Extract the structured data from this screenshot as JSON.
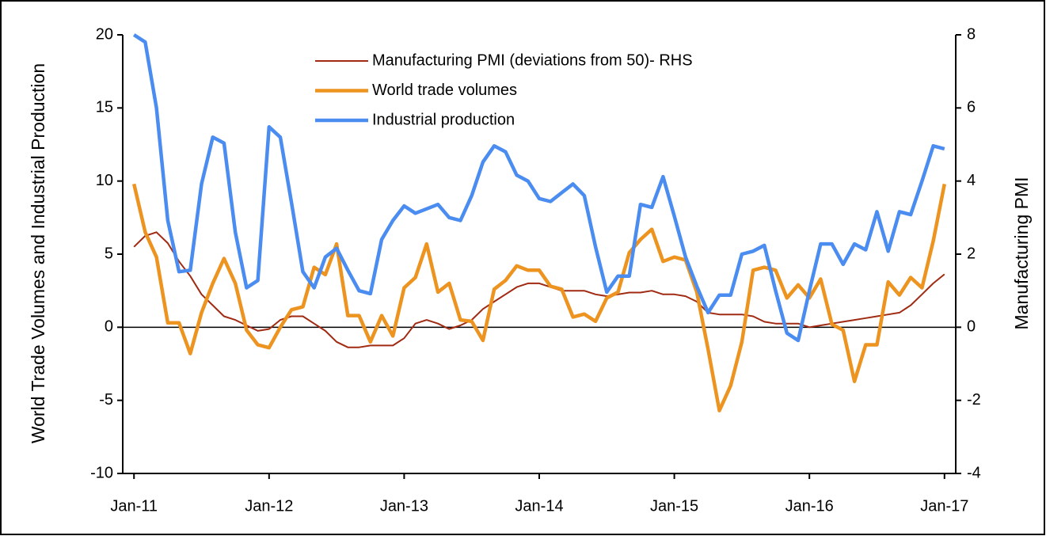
{
  "chart_data": {
    "type": "line",
    "y_label": "World Trade Volumes and Industrial Production",
    "y2_label": "Manufacturing PMI",
    "categories": [
      "Jan-11",
      null,
      null,
      null,
      null,
      null,
      null,
      null,
      null,
      null,
      null,
      null,
      "Jan-12",
      null,
      null,
      null,
      null,
      null,
      null,
      null,
      null,
      null,
      null,
      null,
      "Jan-13",
      null,
      null,
      null,
      null,
      null,
      null,
      null,
      null,
      null,
      null,
      null,
      "Jan-14",
      null,
      null,
      null,
      null,
      null,
      null,
      null,
      null,
      null,
      null,
      null,
      "Jan-15",
      null,
      null,
      null,
      null,
      null,
      null,
      null,
      null,
      null,
      null,
      null,
      "Jan-16",
      null,
      null,
      null,
      null,
      null,
      null,
      null,
      null,
      null,
      null,
      null,
      "Jan-17"
    ],
    "series": [
      {
        "name": "Manufacturing PMI (deviations from 50)- RHS",
        "color": "#a02a12",
        "axis": "y2",
        "values": [
          2.2,
          2.5,
          2.6,
          2.3,
          1.8,
          1.4,
          0.9,
          0.6,
          0.3,
          0.2,
          0.05,
          -0.1,
          -0.05,
          0.2,
          0.3,
          0.3,
          0.1,
          -0.1,
          -0.4,
          -0.55,
          -0.55,
          -0.5,
          -0.5,
          -0.5,
          -0.3,
          0.1,
          0.2,
          0.1,
          -0.05,
          0.05,
          0.2,
          0.5,
          0.7,
          0.9,
          1.1,
          1.2,
          1.2,
          1.1,
          1.0,
          1.0,
          1.0,
          0.9,
          0.85,
          0.9,
          0.95,
          0.95,
          1.0,
          0.9,
          0.9,
          0.85,
          0.7,
          0.4,
          0.35,
          0.35,
          0.35,
          0.3,
          0.15,
          0.1,
          0.1,
          0.1,
          0.0,
          0.05,
          0.1,
          0.15,
          0.2,
          0.25,
          0.3,
          0.35,
          0.4,
          0.6,
          0.9,
          1.2,
          1.45
        ]
      },
      {
        "name": "World trade volumes",
        "color": "#ec9320",
        "values": [
          9.8,
          6.5,
          4.8,
          0.3,
          0.3,
          -1.8,
          1.0,
          3.0,
          4.7,
          3.0,
          -0.2,
          -1.2,
          -1.4,
          0,
          1.2,
          1.4,
          4.1,
          3.6,
          5.7,
          0.8,
          0.8,
          -1.0,
          0.8,
          -0.6,
          2.7,
          3.4,
          5.7,
          2.4,
          3.0,
          0.5,
          0.4,
          -0.9,
          2.6,
          3.2,
          4.2,
          3.9,
          3.9,
          2.8,
          2.6,
          0.7,
          0.9,
          0.4,
          2.0,
          2.4,
          5.1,
          6.0,
          6.7,
          4.5,
          4.8,
          4.6,
          2.4,
          -1.5,
          -5.7,
          -4.0,
          -1.0,
          3.9,
          4.1,
          3.9,
          2.0,
          2.9,
          2.0,
          3.3,
          0.2,
          -0.2,
          -3.7,
          -1.2,
          -1.2,
          3.1,
          2.2,
          3.4,
          2.7,
          5.9,
          9.8
        ]
      },
      {
        "name": "Industrial production",
        "color": "#4a8cf0",
        "values": [
          20,
          19.5,
          15,
          7.3,
          3.8,
          3.9,
          9.8,
          13.0,
          12.6,
          6.5,
          2.7,
          3.2,
          13.7,
          13.0,
          8.5,
          3.8,
          2.7,
          4.8,
          5.4,
          3.9,
          2.5,
          2.3,
          6.0,
          7.3,
          8.3,
          7.8,
          8.1,
          8.4,
          7.5,
          7.3,
          9.0,
          11.3,
          12.4,
          12.0,
          10.4,
          10.0,
          8.8,
          8.6,
          9.2,
          9.8,
          9.0,
          5.5,
          2.4,
          3.5,
          3.5,
          8.4,
          8.2,
          10.3,
          7.6,
          4.8,
          2.8,
          1.0,
          2.2,
          2.2,
          5.0,
          5.2,
          5.6,
          2.5,
          -0.4,
          -0.9,
          2.5,
          5.7,
          5.7,
          4.3,
          5.7,
          5.3,
          7.9,
          5.2,
          7.9,
          7.7,
          10.0,
          12.4,
          12.2
        ]
      }
    ],
    "ylim": [
      -10,
      20
    ],
    "yticks": [
      -10,
      -5,
      0,
      5,
      10,
      15,
      20
    ],
    "y2lim": [
      -4,
      8
    ],
    "y2ticks": [
      -4,
      -2,
      0,
      2,
      4,
      6,
      8
    ],
    "grid": false,
    "legend": "top"
  }
}
